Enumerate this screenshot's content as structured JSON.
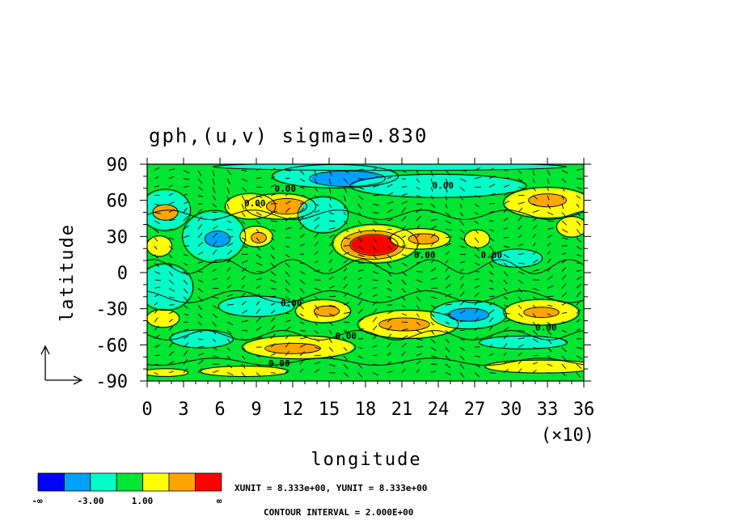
{
  "chart_data": {
    "type": "heatmap",
    "title": "gph,(u,v) sigma=0.830",
    "xlabel": "longitude",
    "ylabel": "latitude",
    "x_multiplier_label": "(×10)",
    "x_ticks": [
      "0",
      "3",
      "6",
      "9",
      "12",
      "15",
      "18",
      "21",
      "24",
      "27",
      "30",
      "33",
      "36"
    ],
    "y_ticks": [
      "90",
      "60",
      "30",
      "0",
      "-30",
      "-60",
      "-90"
    ],
    "xlim": [
      0,
      36
    ],
    "ylim": [
      -90,
      90
    ],
    "contour_label": "0.00",
    "colorbar": {
      "colors": [
        "#0000ff",
        "#00a0ff",
        "#00ffc8",
        "#00e632",
        "#ffff00",
        "#ffa500",
        "#ff0000"
      ],
      "labels": [
        "-∞",
        "-3.00",
        "1.00",
        "∞"
      ]
    },
    "unit_text": "XUNIT = 8.333e+00, YUNIT = 8.333e+00",
    "interval_text": "CONTOUR INTERVAL = 2.000E+00",
    "regions": [
      {
        "level": 2,
        "lon": 1.5,
        "lat": 52,
        "rlon": 2.0,
        "rlat": 16
      },
      {
        "level": 5,
        "lon": 1.5,
        "lat": 50,
        "rlon": 1.0,
        "rlat": 6
      },
      {
        "level": 2,
        "lon": 1.5,
        "lat": -12,
        "rlon": 2.2,
        "rlat": 18
      },
      {
        "level": 4,
        "lon": 1.3,
        "lat": -38,
        "rlon": 1.3,
        "rlat": 7
      },
      {
        "level": 4,
        "lon": 1.0,
        "lat": 22,
        "rlon": 1.0,
        "rlat": 8
      },
      {
        "level": 2,
        "lon": 5.5,
        "lat": 30,
        "rlon": 2.5,
        "rlat": 20
      },
      {
        "level": 1,
        "lon": 5.8,
        "lat": 28,
        "rlon": 1.0,
        "rlat": 6
      },
      {
        "level": 4,
        "lon": 8.5,
        "lat": 55,
        "rlon": 2.0,
        "rlat": 10
      },
      {
        "level": 4,
        "lon": 11.0,
        "lat": 55,
        "rlon": 2.8,
        "rlat": 10
      },
      {
        "level": 5,
        "lon": 11.5,
        "lat": 55,
        "rlon": 1.6,
        "rlat": 6
      },
      {
        "level": 4,
        "lon": 9.0,
        "lat": 30,
        "rlon": 1.3,
        "rlat": 8
      },
      {
        "level": 5,
        "lon": 9.2,
        "lat": 29,
        "rlon": 0.6,
        "rlat": 4
      },
      {
        "level": 2,
        "lon": 15.5,
        "lat": 80,
        "rlon": 5.0,
        "rlat": 9
      },
      {
        "level": 1,
        "lon": 16.5,
        "lat": 78,
        "rlon": 3.0,
        "rlat": 6
      },
      {
        "level": 2,
        "lon": 14.5,
        "lat": 48,
        "rlon": 2.0,
        "rlat": 14
      },
      {
        "level": 4,
        "lon": 18.8,
        "lat": 24,
        "rlon": 3.4,
        "rlat": 15
      },
      {
        "level": 5,
        "lon": 18.6,
        "lat": 23,
        "rlon": 2.5,
        "rlat": 11
      },
      {
        "level": 6,
        "lon": 18.7,
        "lat": 23,
        "rlon": 1.9,
        "rlat": 8
      },
      {
        "level": 4,
        "lon": 22.5,
        "lat": 28,
        "rlon": 2.4,
        "rlat": 8
      },
      {
        "level": 5,
        "lon": 22.8,
        "lat": 28,
        "rlon": 1.2,
        "rlat": 4
      },
      {
        "level": 2,
        "lon": 24.0,
        "lat": 72,
        "rlon": 7.0,
        "rlat": 9
      },
      {
        "level": 4,
        "lon": 27.2,
        "lat": 28,
        "rlon": 1.0,
        "rlat": 7
      },
      {
        "level": 4,
        "lon": 33.0,
        "lat": 58,
        "rlon": 3.5,
        "rlat": 12
      },
      {
        "level": 5,
        "lon": 33.0,
        "lat": 60,
        "rlon": 1.5,
        "rlat": 5
      },
      {
        "level": 4,
        "lon": 35.0,
        "lat": 38,
        "rlon": 1.2,
        "rlat": 8
      },
      {
        "level": 2,
        "lon": 30.5,
        "lat": 12,
        "rlon": 2.0,
        "rlat": 7
      },
      {
        "level": 4,
        "lon": 14.5,
        "lat": -32,
        "rlon": 2.2,
        "rlat": 9
      },
      {
        "level": 5,
        "lon": 14.8,
        "lat": -32,
        "rlon": 1.0,
        "rlat": 4
      },
      {
        "level": 4,
        "lon": 21.5,
        "lat": -43,
        "rlon": 4.0,
        "rlat": 11
      },
      {
        "level": 5,
        "lon": 21.2,
        "lat": -43,
        "rlon": 2.0,
        "rlat": 5
      },
      {
        "level": 2,
        "lon": 26.5,
        "lat": -35,
        "rlon": 3.0,
        "rlat": 11
      },
      {
        "level": 1,
        "lon": 26.5,
        "lat": -35,
        "rlon": 1.6,
        "rlat": 5
      },
      {
        "level": 4,
        "lon": 32.5,
        "lat": -33,
        "rlon": 3.0,
        "rlat": 10
      },
      {
        "level": 5,
        "lon": 32.5,
        "lat": -33,
        "rlon": 1.4,
        "rlat": 4
      },
      {
        "level": 2,
        "lon": 9.0,
        "lat": -28,
        "rlon": 3.0,
        "rlat": 8
      },
      {
        "level": 2,
        "lon": 4.5,
        "lat": -55,
        "rlon": 2.5,
        "rlat": 7
      },
      {
        "level": 4,
        "lon": 12.5,
        "lat": -62,
        "rlon": 4.5,
        "rlat": 9
      },
      {
        "level": 5,
        "lon": 12.0,
        "lat": -63,
        "rlon": 2.2,
        "rlat": 4
      },
      {
        "level": 4,
        "lon": 32.5,
        "lat": -78,
        "rlon": 4.5,
        "rlat": 5
      },
      {
        "level": 4,
        "lon": 8.0,
        "lat": -82,
        "rlon": 3.5,
        "rlat": 4
      },
      {
        "level": 4,
        "lon": 1.5,
        "lat": -83,
        "rlon": 1.8,
        "rlat": 3
      },
      {
        "level": 2,
        "lon": 31.0,
        "lat": -58,
        "rlon": 3.5,
        "rlat": 5
      },
      {
        "level": 2,
        "lon": 20.0,
        "lat": 88,
        "rlon": 14.0,
        "rlat": 3
      }
    ]
  }
}
